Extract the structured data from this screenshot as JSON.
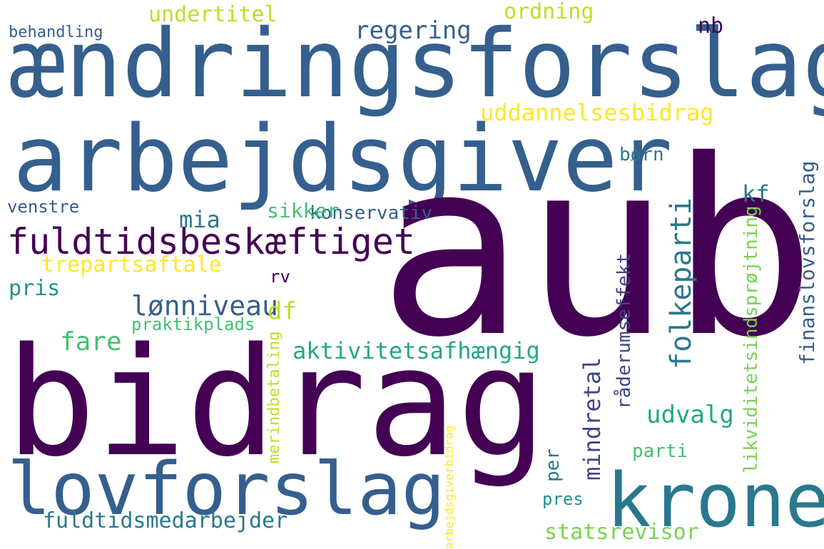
{
  "palette": {
    "dark_purple": "#440154",
    "purple": "#482475",
    "indigo": "#414487",
    "blue": "#355f8d",
    "steel": "#2a788e",
    "teal": "#21918c",
    "green_teal": "#22a884",
    "green": "#44bf70",
    "light_green": "#7ad151",
    "yellow_green": "#bddf26",
    "yellow": "#fde725"
  },
  "words": [
    "ændringsforslag",
    "arbejdsgiver",
    "aub",
    "bidrag",
    "lovforslag",
    "krone",
    "fuldtidsbeskæftiget",
    "uddannelsesbidrag",
    "folkeparti",
    "finanslovsforslag",
    "likviditetsindsprøjtning",
    "råderumseffekt",
    "aktivitetsafhængig",
    "mindretal",
    "merindbetaling",
    "fuldtidsmedarbejder",
    "statsrevisor",
    "trepartsaftale",
    "lønniveau",
    "konservativ",
    "regering",
    "undertitel",
    "ordning",
    "behandling",
    "nb",
    "kf",
    "df",
    "mia",
    "sikker",
    "venstre",
    "pris",
    "fare",
    "praktikplads",
    "udvalg",
    "parti",
    "pres",
    "rv",
    "børn",
    "per",
    "arbejdsgiverbidrag"
  ]
}
